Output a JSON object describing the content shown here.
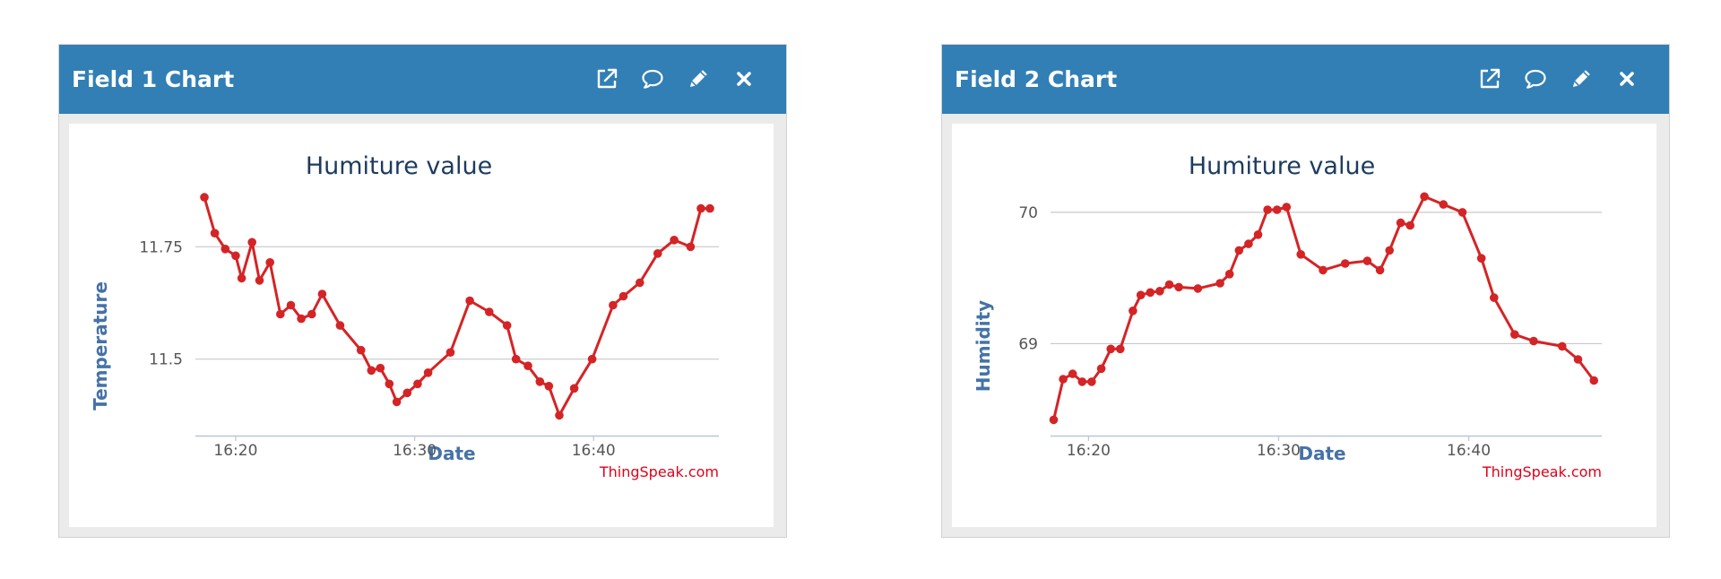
{
  "widgets": [
    {
      "header_title": "Field 1 Chart",
      "tools": [
        "external-link-icon",
        "comment-icon",
        "pencil-icon",
        "close-icon"
      ],
      "credit": "ThingSpeak.com",
      "chart_data": {
        "type": "line",
        "title": "Humiture value",
        "xlabel": "Date",
        "ylabel": "Temperature",
        "xlim": [
          "16:17:45",
          "16:47:00"
        ],
        "ylim": [
          11.33,
          11.92
        ],
        "x_ticks": [
          "16:20",
          "16:30",
          "16:40"
        ],
        "y_ticks": [
          11.5,
          11.75
        ],
        "y_tick_labels": [
          "11.5",
          "11.75"
        ],
        "grid": true,
        "legend": "none",
        "series_color": "#d42426",
        "x": [
          "16:18:15",
          "16:18:50",
          "16:19:25",
          "16:20:00",
          "16:20:20",
          "16:20:55",
          "16:21:20",
          "16:21:55",
          "16:22:30",
          "16:23:05",
          "16:23:40",
          "16:24:15",
          "16:24:50",
          "16:25:50",
          "16:27:00",
          "16:27:35",
          "16:28:05",
          "16:28:35",
          "16:29:00",
          "16:29:35",
          "16:30:10",
          "16:30:45",
          "16:32:00",
          "16:33:05",
          "16:34:10",
          "16:35:10",
          "16:35:40",
          "16:36:20",
          "16:37:00",
          "16:37:30",
          "16:38:05",
          "16:38:55",
          "16:39:55",
          "16:41:05",
          "16:41:40",
          "16:42:35",
          "16:43:35",
          "16:44:30",
          "16:45:25",
          "16:46:00",
          "16:46:30"
        ],
        "y": [
          11.86,
          11.78,
          11.745,
          11.73,
          11.68,
          11.76,
          11.675,
          11.715,
          11.6,
          11.62,
          11.59,
          11.6,
          11.645,
          11.575,
          11.52,
          11.475,
          11.48,
          11.445,
          11.405,
          11.425,
          11.445,
          11.47,
          11.515,
          11.63,
          11.605,
          11.575,
          11.5,
          11.485,
          11.45,
          11.44,
          11.375,
          11.435,
          11.5,
          11.62,
          11.64,
          11.67,
          11.735,
          11.765,
          11.75,
          11.835,
          11.835
        ]
      }
    },
    {
      "header_title": "Field 2 Chart",
      "tools": [
        "external-link-icon",
        "comment-icon",
        "pencil-icon",
        "close-icon"
      ],
      "credit": "ThingSpeak.com",
      "chart_data": {
        "type": "line",
        "title": "Humiture value",
        "xlabel": "Date",
        "ylabel": "Humidity",
        "xlim": [
          "16:18:00",
          "16:47:00"
        ],
        "ylim": [
          68.3,
          70.32
        ],
        "x_ticks": [
          "16:20",
          "16:30",
          "16:40"
        ],
        "y_ticks": [
          69,
          70
        ],
        "y_tick_labels": [
          "69",
          "70"
        ],
        "grid": true,
        "legend": "none",
        "series_color": "#d42426",
        "x": [
          "16:18:10",
          "16:18:40",
          "16:19:10",
          "16:19:40",
          "16:20:10",
          "16:20:40",
          "16:21:10",
          "16:21:40",
          "16:22:20",
          "16:22:45",
          "16:23:15",
          "16:23:45",
          "16:24:15",
          "16:24:45",
          "16:25:45",
          "16:26:55",
          "16:27:25",
          "16:27:55",
          "16:28:25",
          "16:28:55",
          "16:29:25",
          "16:29:55",
          "16:30:25",
          "16:31:10",
          "16:32:20",
          "16:33:30",
          "16:34:40",
          "16:35:20",
          "16:35:50",
          "16:36:25",
          "16:36:55",
          "16:37:40",
          "16:38:40",
          "16:39:40",
          "16:40:40",
          "16:41:20",
          "16:42:25",
          "16:43:25",
          "16:44:55",
          "16:45:45",
          "16:46:35"
        ],
        "y": [
          68.42,
          68.73,
          68.77,
          68.71,
          68.71,
          68.81,
          68.96,
          68.96,
          69.25,
          69.37,
          69.39,
          69.4,
          69.45,
          69.43,
          69.42,
          69.46,
          69.53,
          69.71,
          69.76,
          69.83,
          70.02,
          70.02,
          70.04,
          69.68,
          69.56,
          69.61,
          69.63,
          69.56,
          69.71,
          69.92,
          69.9,
          70.12,
          70.06,
          70.0,
          69.65,
          69.35,
          69.07,
          69.02,
          68.98,
          68.88,
          68.72
        ]
      }
    }
  ]
}
